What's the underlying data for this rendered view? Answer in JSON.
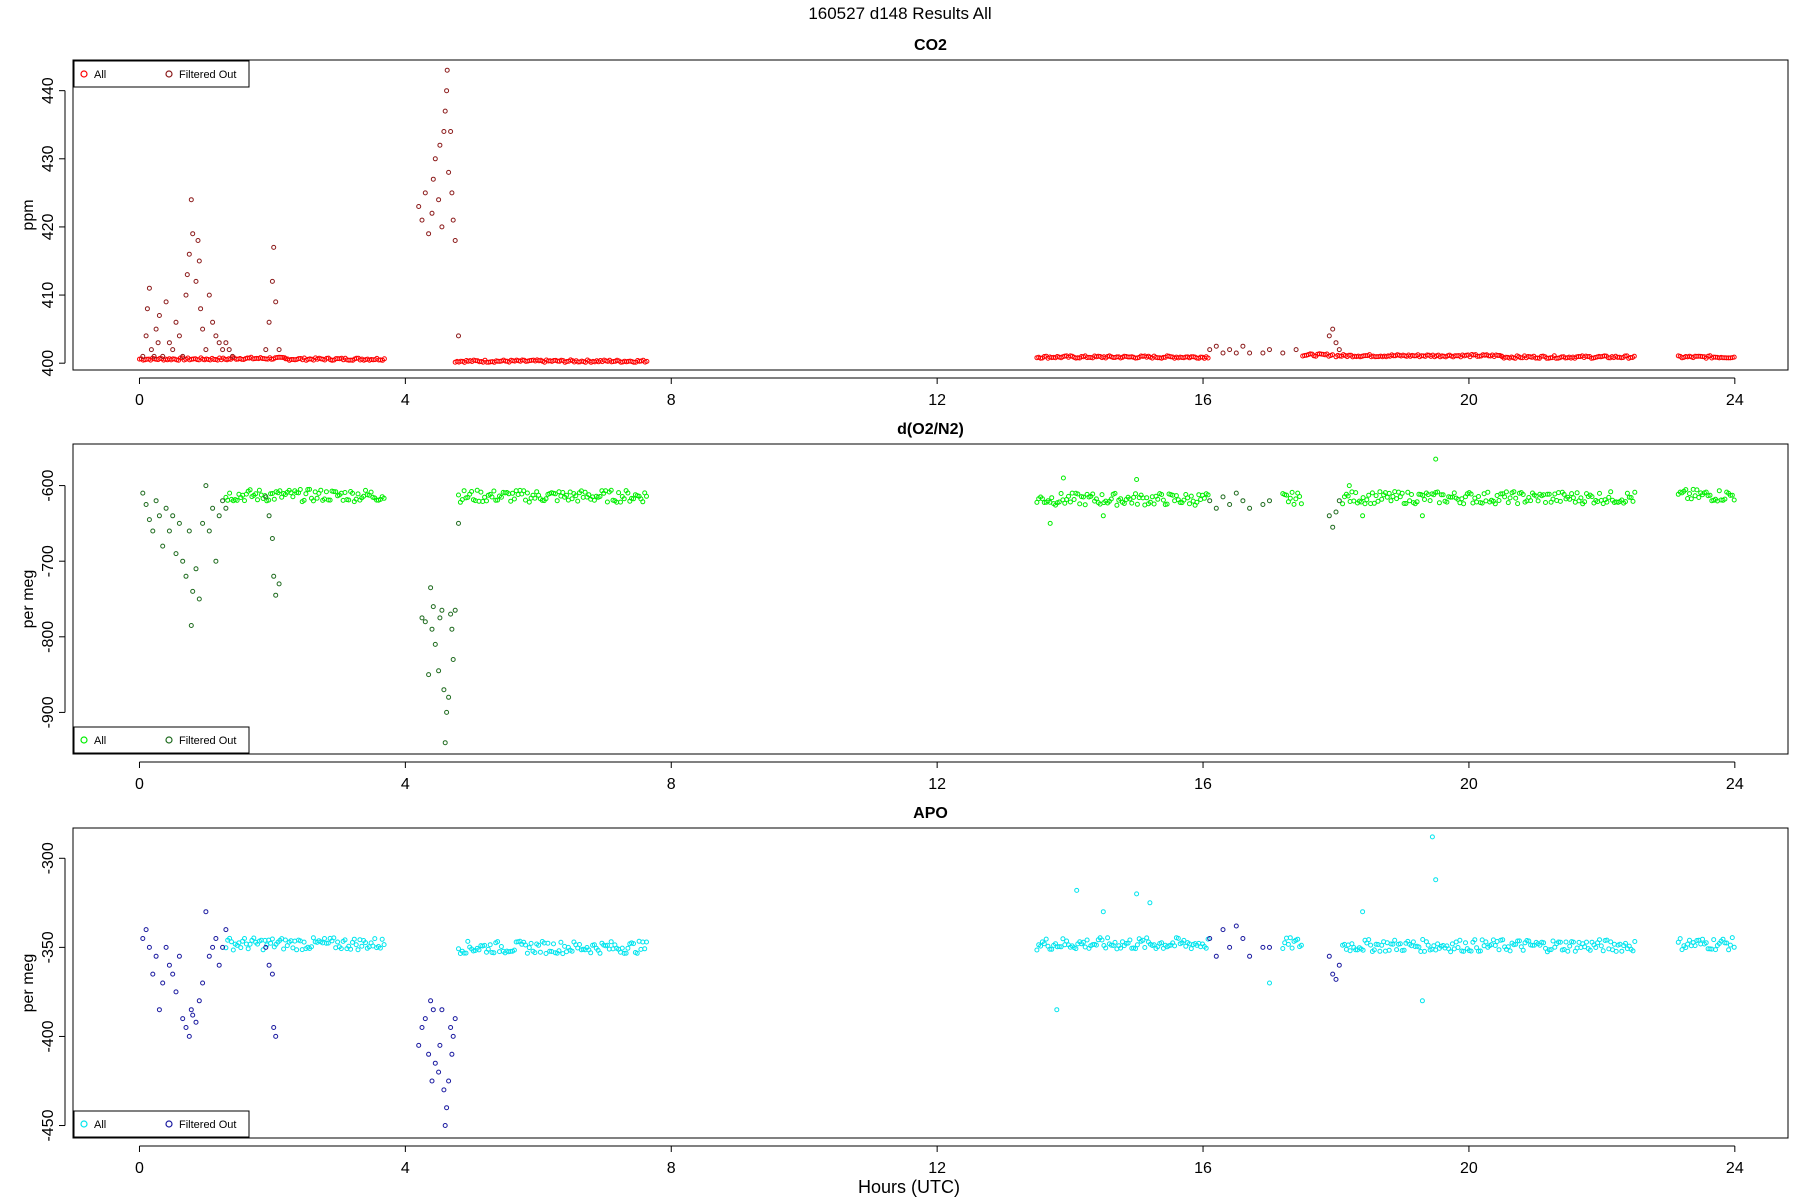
{
  "figure": {
    "title": "160527   d148   Results All",
    "xlabel": "Hours (UTC)"
  },
  "colors": {
    "co2_all": "#ff0000",
    "co2_filtered": "#8b1a1a",
    "o2_all": "#00ee00",
    "o2_filtered": "#1f6b1f",
    "apo_all": "#00e5ee",
    "apo_filtered": "#1a1aa0"
  },
  "chart_data": [
    {
      "type": "scatter",
      "title": "CO2",
      "xlabel": "",
      "ylabel": "ppm",
      "xlim": [
        -1,
        24.8
      ],
      "ylim": [
        399,
        444.5
      ],
      "xticks": [
        0,
        4,
        8,
        12,
        16,
        20,
        24
      ],
      "yticks": [
        400,
        410,
        420,
        430,
        440
      ],
      "grid": false,
      "legend": "top-left",
      "series": [
        {
          "name": "All",
          "color_key": "co2_all",
          "segments": [
            [
              0.0,
              1.4,
              400.6
            ],
            [
              1.4,
              2.2,
              400.7
            ],
            [
              2.2,
              3.7,
              400.6
            ],
            [
              4.75,
              7.65,
              400.3
            ],
            [
              13.5,
              16.1,
              400.9
            ],
            [
              17.5,
              17.95,
              401.2
            ],
            [
              18.0,
              20.5,
              401.1
            ],
            [
              20.5,
              22.5,
              400.9
            ],
            [
              23.15,
              24.0,
              400.9
            ]
          ],
          "points": []
        },
        {
          "name": "Filtered Out",
          "color_key": "co2_filtered",
          "segments": [],
          "points": [
            [
              0.05,
              401
            ],
            [
              0.1,
              404
            ],
            [
              0.12,
              408
            ],
            [
              0.15,
              411
            ],
            [
              0.18,
              402
            ],
            [
              0.22,
              401
            ],
            [
              0.25,
              405
            ],
            [
              0.28,
              403
            ],
            [
              0.3,
              407
            ],
            [
              0.35,
              401
            ],
            [
              0.4,
              409
            ],
            [
              0.45,
              403
            ],
            [
              0.5,
              402
            ],
            [
              0.55,
              406
            ],
            [
              0.6,
              404
            ],
            [
              0.65,
              401
            ],
            [
              0.7,
              410
            ],
            [
              0.72,
              413
            ],
            [
              0.75,
              416
            ],
            [
              0.78,
              424
            ],
            [
              0.8,
              419
            ],
            [
              0.85,
              412
            ],
            [
              0.88,
              418
            ],
            [
              0.9,
              415
            ],
            [
              0.92,
              408
            ],
            [
              0.95,
              405
            ],
            [
              1.0,
              402
            ],
            [
              1.05,
              410
            ],
            [
              1.1,
              406
            ],
            [
              1.15,
              404
            ],
            [
              1.2,
              403
            ],
            [
              1.25,
              402
            ],
            [
              1.3,
              403
            ],
            [
              1.35,
              402
            ],
            [
              1.4,
              401
            ],
            [
              1.9,
              402
            ],
            [
              1.95,
              406
            ],
            [
              2.0,
              412
            ],
            [
              2.02,
              417
            ],
            [
              2.05,
              409
            ],
            [
              2.1,
              402
            ],
            [
              4.2,
              423
            ],
            [
              4.25,
              421
            ],
            [
              4.3,
              425
            ],
            [
              4.35,
              419
            ],
            [
              4.4,
              422
            ],
            [
              4.42,
              427
            ],
            [
              4.45,
              430
            ],
            [
              4.5,
              424
            ],
            [
              4.52,
              432
            ],
            [
              4.55,
              420
            ],
            [
              4.58,
              434
            ],
            [
              4.6,
              437
            ],
            [
              4.62,
              440
            ],
            [
              4.63,
              443
            ],
            [
              4.65,
              428
            ],
            [
              4.68,
              434
            ],
            [
              4.7,
              425
            ],
            [
              4.72,
              421
            ],
            [
              4.75,
              418
            ],
            [
              4.8,
              404
            ],
            [
              16.1,
              402
            ],
            [
              16.2,
              402.5
            ],
            [
              16.3,
              401.5
            ],
            [
              16.4,
              402
            ],
            [
              16.5,
              401.5
            ],
            [
              16.6,
              402.5
            ],
            [
              16.7,
              401.5
            ],
            [
              16.9,
              401.5
            ],
            [
              17.0,
              402
            ],
            [
              17.2,
              401.5
            ],
            [
              17.4,
              402
            ],
            [
              17.9,
              404
            ],
            [
              17.95,
              405
            ],
            [
              18.0,
              403
            ],
            [
              18.05,
              402
            ]
          ]
        }
      ]
    },
    {
      "type": "scatter",
      "title": "d(O2/N2)",
      "xlabel": "",
      "ylabel": "per meg",
      "xlim": [
        -1,
        24.8
      ],
      "ylim": [
        -955,
        -545
      ],
      "xticks": [
        0,
        4,
        8,
        12,
        16,
        20,
        24
      ],
      "yticks": [
        -600,
        -700,
        -800,
        -900
      ],
      "grid": false,
      "legend": "bottom-left",
      "series": [
        {
          "name": "All",
          "color_key": "o2_all",
          "segments": [
            [
              1.3,
              3.7,
              -613
            ],
            [
              4.8,
              7.65,
              -614
            ],
            [
              13.5,
              16.1,
              -618
            ],
            [
              17.2,
              17.5,
              -617
            ],
            [
              18.1,
              22.5,
              -616
            ],
            [
              23.15,
              24.0,
              -613
            ]
          ],
          "points": [
            [
              13.7,
              -650
            ],
            [
              13.9,
              -590
            ],
            [
              14.5,
              -640
            ],
            [
              15.0,
              -592
            ],
            [
              19.5,
              -565
            ],
            [
              19.3,
              -640
            ],
            [
              18.2,
              -600
            ],
            [
              18.4,
              -640
            ]
          ]
        },
        {
          "name": "Filtered Out",
          "color_key": "o2_filtered",
          "segments": [],
          "points": [
            [
              0.05,
              -610
            ],
            [
              0.1,
              -625
            ],
            [
              0.15,
              -645
            ],
            [
              0.2,
              -660
            ],
            [
              0.25,
              -620
            ],
            [
              0.3,
              -640
            ],
            [
              0.35,
              -680
            ],
            [
              0.4,
              -630
            ],
            [
              0.45,
              -660
            ],
            [
              0.5,
              -640
            ],
            [
              0.55,
              -690
            ],
            [
              0.6,
              -650
            ],
            [
              0.65,
              -700
            ],
            [
              0.7,
              -720
            ],
            [
              0.75,
              -660
            ],
            [
              0.78,
              -785
            ],
            [
              0.8,
              -740
            ],
            [
              0.85,
              -710
            ],
            [
              0.9,
              -750
            ],
            [
              0.95,
              -650
            ],
            [
              1.0,
              -600
            ],
            [
              1.05,
              -660
            ],
            [
              1.1,
              -630
            ],
            [
              1.15,
              -700
            ],
            [
              1.2,
              -640
            ],
            [
              1.25,
              -620
            ],
            [
              1.3,
              -630
            ],
            [
              1.9,
              -615
            ],
            [
              1.95,
              -640
            ],
            [
              2.0,
              -670
            ],
            [
              2.02,
              -720
            ],
            [
              2.05,
              -745
            ],
            [
              2.1,
              -730
            ],
            [
              4.25,
              -775
            ],
            [
              4.3,
              -780
            ],
            [
              4.35,
              -850
            ],
            [
              4.38,
              -735
            ],
            [
              4.4,
              -790
            ],
            [
              4.42,
              -760
            ],
            [
              4.45,
              -810
            ],
            [
              4.5,
              -845
            ],
            [
              4.52,
              -775
            ],
            [
              4.55,
              -765
            ],
            [
              4.58,
              -870
            ],
            [
              4.6,
              -940
            ],
            [
              4.62,
              -900
            ],
            [
              4.65,
              -880
            ],
            [
              4.68,
              -770
            ],
            [
              4.7,
              -790
            ],
            [
              4.72,
              -830
            ],
            [
              4.75,
              -765
            ],
            [
              4.8,
              -650
            ],
            [
              16.1,
              -620
            ],
            [
              16.2,
              -630
            ],
            [
              16.3,
              -615
            ],
            [
              16.4,
              -625
            ],
            [
              16.5,
              -610
            ],
            [
              16.6,
              -620
            ],
            [
              16.7,
              -630
            ],
            [
              16.9,
              -625
            ],
            [
              17.0,
              -620
            ],
            [
              17.9,
              -640
            ],
            [
              17.95,
              -655
            ],
            [
              18.0,
              -635
            ],
            [
              18.05,
              -620
            ]
          ]
        }
      ]
    },
    {
      "type": "scatter",
      "title": "APO",
      "xlabel": "Hours (UTC)",
      "ylabel": "per meg",
      "xlim": [
        -1,
        24.8
      ],
      "ylim": [
        -457,
        -283
      ],
      "xticks": [
        0,
        4,
        8,
        12,
        16,
        20,
        24
      ],
      "yticks": [
        -300,
        -350,
        -400,
        -450
      ],
      "grid": false,
      "legend": "bottom-left",
      "series": [
        {
          "name": "All",
          "color_key": "apo_all",
          "segments": [
            [
              1.3,
              3.7,
              -348
            ],
            [
              4.8,
              7.65,
              -350
            ],
            [
              13.5,
              16.1,
              -348
            ],
            [
              17.2,
              17.5,
              -348
            ],
            [
              18.1,
              22.5,
              -349
            ],
            [
              23.15,
              24.0,
              -348
            ]
          ],
          "points": [
            [
              13.8,
              -385
            ],
            [
              14.1,
              -318
            ],
            [
              14.5,
              -330
            ],
            [
              15.0,
              -320
            ],
            [
              15.2,
              -325
            ],
            [
              19.45,
              -288
            ],
            [
              19.5,
              -312
            ],
            [
              19.3,
              -380
            ],
            [
              18.4,
              -330
            ],
            [
              17.0,
              -370
            ]
          ]
        },
        {
          "name": "Filtered Out",
          "color_key": "apo_filtered",
          "segments": [],
          "points": [
            [
              0.05,
              -345
            ],
            [
              0.1,
              -340
            ],
            [
              0.15,
              -350
            ],
            [
              0.2,
              -365
            ],
            [
              0.25,
              -355
            ],
            [
              0.3,
              -385
            ],
            [
              0.35,
              -370
            ],
            [
              0.4,
              -350
            ],
            [
              0.45,
              -360
            ],
            [
              0.5,
              -365
            ],
            [
              0.55,
              -375
            ],
            [
              0.6,
              -355
            ],
            [
              0.65,
              -390
            ],
            [
              0.7,
              -395
            ],
            [
              0.75,
              -400
            ],
            [
              0.78,
              -385
            ],
            [
              0.8,
              -388
            ],
            [
              0.85,
              -392
            ],
            [
              0.9,
              -380
            ],
            [
              0.95,
              -370
            ],
            [
              1.0,
              -330
            ],
            [
              1.05,
              -355
            ],
            [
              1.1,
              -350
            ],
            [
              1.15,
              -345
            ],
            [
              1.2,
              -360
            ],
            [
              1.25,
              -350
            ],
            [
              1.3,
              -340
            ],
            [
              1.9,
              -350
            ],
            [
              1.95,
              -360
            ],
            [
              2.0,
              -365
            ],
            [
              2.02,
              -395
            ],
            [
              2.05,
              -400
            ],
            [
              4.2,
              -405
            ],
            [
              4.25,
              -395
            ],
            [
              4.3,
              -390
            ],
            [
              4.35,
              -410
            ],
            [
              4.38,
              -380
            ],
            [
              4.4,
              -425
            ],
            [
              4.42,
              -385
            ],
            [
              4.45,
              -415
            ],
            [
              4.5,
              -420
            ],
            [
              4.52,
              -405
            ],
            [
              4.55,
              -385
            ],
            [
              4.58,
              -430
            ],
            [
              4.6,
              -450
            ],
            [
              4.62,
              -440
            ],
            [
              4.65,
              -425
            ],
            [
              4.68,
              -395
            ],
            [
              4.7,
              -410
            ],
            [
              4.72,
              -400
            ],
            [
              4.75,
              -390
            ],
            [
              16.1,
              -345
            ],
            [
              16.2,
              -355
            ],
            [
              16.3,
              -340
            ],
            [
              16.4,
              -350
            ],
            [
              16.5,
              -338
            ],
            [
              16.6,
              -345
            ],
            [
              16.7,
              -355
            ],
            [
              16.9,
              -350
            ],
            [
              17.0,
              -350
            ],
            [
              17.9,
              -355
            ],
            [
              17.95,
              -365
            ],
            [
              18.0,
              -368
            ],
            [
              18.05,
              -360
            ]
          ]
        }
      ]
    }
  ]
}
